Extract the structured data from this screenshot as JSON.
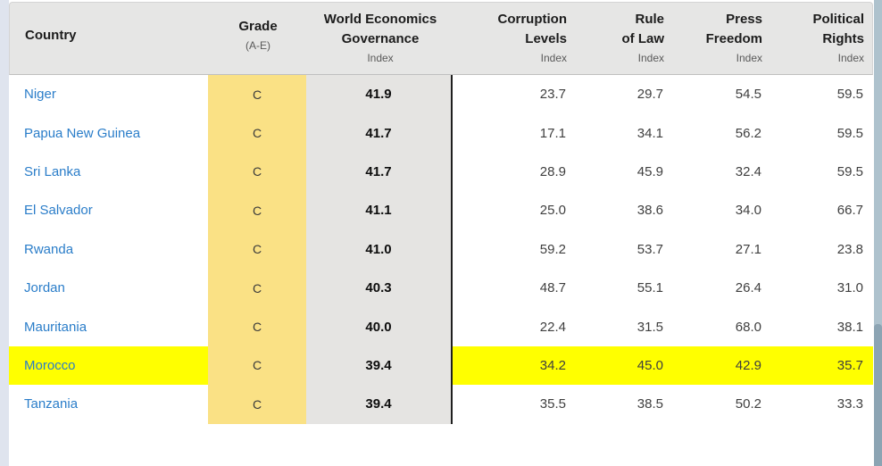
{
  "table": {
    "columns": [
      {
        "key": "country",
        "lines": [
          "Country"
        ],
        "sub": ""
      },
      {
        "key": "grade",
        "lines": [
          "Grade"
        ],
        "sub": "(A-E)"
      },
      {
        "key": "weg",
        "lines": [
          "World Economics",
          "Governance"
        ],
        "sub": "Index"
      },
      {
        "key": "corruption",
        "lines": [
          "Corruption",
          "Levels"
        ],
        "sub": "Index"
      },
      {
        "key": "rule",
        "lines": [
          "Rule",
          "of Law"
        ],
        "sub": "Index"
      },
      {
        "key": "press",
        "lines": [
          "Press",
          "Freedom"
        ],
        "sub": "Index"
      },
      {
        "key": "political",
        "lines": [
          "Political",
          "Rights"
        ],
        "sub": "Index"
      }
    ],
    "rows": [
      {
        "country": "Niger",
        "grade": "C",
        "weg": "41.9",
        "corruption": "23.7",
        "rule": "29.7",
        "press": "54.5",
        "political": "59.5",
        "highlight": false
      },
      {
        "country": "Papua New Guinea",
        "grade": "C",
        "weg": "41.7",
        "corruption": "17.1",
        "rule": "34.1",
        "press": "56.2",
        "political": "59.5",
        "highlight": false
      },
      {
        "country": "Sri Lanka",
        "grade": "C",
        "weg": "41.7",
        "corruption": "28.9",
        "rule": "45.9",
        "press": "32.4",
        "political": "59.5",
        "highlight": false
      },
      {
        "country": "El Salvador",
        "grade": "C",
        "weg": "41.1",
        "corruption": "25.0",
        "rule": "38.6",
        "press": "34.0",
        "political": "66.7",
        "highlight": false
      },
      {
        "country": "Rwanda",
        "grade": "C",
        "weg": "41.0",
        "corruption": "59.2",
        "rule": "53.7",
        "press": "27.1",
        "political": "23.8",
        "highlight": false
      },
      {
        "country": "Jordan",
        "grade": "C",
        "weg": "40.3",
        "corruption": "48.7",
        "rule": "55.1",
        "press": "26.4",
        "political": "31.0",
        "highlight": false
      },
      {
        "country": "Mauritania",
        "grade": "C",
        "weg": "40.0",
        "corruption": "22.4",
        "rule": "31.5",
        "press": "68.0",
        "political": "38.1",
        "highlight": false
      },
      {
        "country": "Morocco",
        "grade": "C",
        "weg": "39.4",
        "corruption": "34.2",
        "rule": "45.0",
        "press": "42.9",
        "political": "35.7",
        "highlight": true
      },
      {
        "country": "Tanzania",
        "grade": "C",
        "weg": "39.4",
        "corruption": "35.5",
        "rule": "38.5",
        "press": "50.2",
        "political": "33.3",
        "highlight": false
      }
    ]
  },
  "colors": {
    "highlight_row": "#FFFF00",
    "grade_stripe": "#FAE185",
    "weg_stripe": "#E5E4E2",
    "header_bg": "#E6E6E5",
    "country_link": "#2A7DC9",
    "divider": "#1F1F1F",
    "page_margin": "#DFE4EE",
    "scrollbar_track": "#AEC2CD",
    "scrollbar_thumb": "#8CA4B3"
  }
}
